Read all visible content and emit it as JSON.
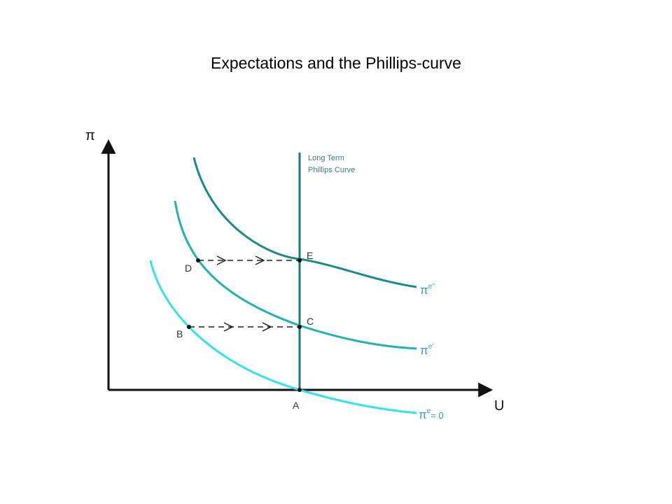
{
  "title": "Expectations and the Phillips-curve",
  "axes": {
    "y_label": "π",
    "x_label": "U"
  },
  "long_term_label": [
    "Long Term",
    "Phillips Curve"
  ],
  "points": [
    "A",
    "B",
    "C",
    "D",
    "E"
  ],
  "curve_labels": [
    {
      "base": "π",
      "sup": "e''"
    },
    {
      "base": "π",
      "sup": "e'"
    },
    {
      "base": "π",
      "sup": "e",
      "rest": "= 0"
    }
  ]
}
